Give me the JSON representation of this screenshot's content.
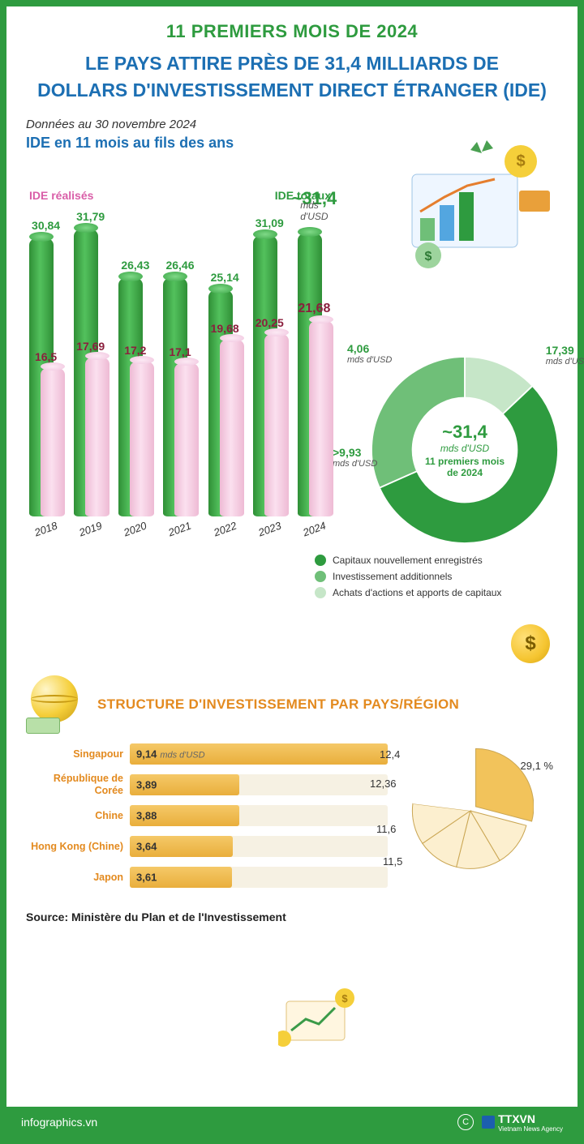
{
  "header": {
    "subtitle": "11 PREMIERS MOIS DE 2024",
    "title_l1": "LE PAYS ATTIRE PRÈS DE 31,4 MILLIARDS DE",
    "title_l2": "DOLLARS D'INVESTISSEMENT DIRECT ÉTRANGER  (IDE)",
    "date_note": "Données au 30 novembre 2024",
    "chart_title": "IDE en 11 mois au fils des ans"
  },
  "colors": {
    "border": "#2e9b3f",
    "blue": "#1c6fb3",
    "green": "#2e9b3f",
    "green_mid": "#6fbf78",
    "green_light": "#c6e6c8",
    "pink_label": "#d95ea8",
    "pink_dark": "#8b1f3d",
    "orange": "#e38a1f",
    "bar_gold": "#eeb94a",
    "bar_track": "#f6f1e3",
    "pie_gold": "#f2c35b",
    "pie_cream": "#fcefcf",
    "white": "#ffffff"
  },
  "bar_chart": {
    "type": "grouped-cylinder-bar",
    "label_realises": "IDE réalisés",
    "label_totaux": "IDE totaux",
    "unit": "mds d'USD",
    "years": [
      "2018",
      "2019",
      "2020",
      "2021",
      "2022",
      "2023",
      "2024"
    ],
    "totaux": [
      30.84,
      31.79,
      26.43,
      26.46,
      25.14,
      31.09,
      31.4
    ],
    "totaux_labels": [
      "30,84",
      "31,79",
      "26,43",
      "26,46",
      "25,14",
      "31,09",
      "~31,4"
    ],
    "realises": [
      16.5,
      17.69,
      17.2,
      17.1,
      19.68,
      20.25,
      21.68
    ],
    "realises_labels": [
      "16,5",
      "17,69",
      "17,2",
      "17,1",
      "19,68",
      "20,25",
      "21,68"
    ],
    "y_max": 34,
    "highlight_index": 6,
    "bar_color_totaux": "#3ba647",
    "bar_color_realises": "#f1c5df"
  },
  "donut": {
    "type": "donut",
    "center_value": "~31,4",
    "center_unit": "mds d'USD",
    "center_sub": "11 premiers mois de 2024",
    "slices": [
      {
        "label": "Capitaux nouvellement enregistrés",
        "value": 17.39,
        "value_str": "17,39",
        "color": "#2e9b3f"
      },
      {
        "label": "Investissement additionnels",
        "value": 9.93,
        "value_str": ">9,93",
        "color": "#6fbf78"
      },
      {
        "label": "Achats d'actions et apports de capitaux",
        "value": 4.06,
        "value_str": "4,06",
        "color": "#c6e6c8"
      }
    ],
    "unit": "mds d'USD"
  },
  "structure": {
    "title": "STRUCTURE D'INVESTISSEMENT PAR PAYS/RÉGION",
    "unit": "mds d'USD",
    "max_bar": 9.14,
    "rows": [
      {
        "label": "Singapour",
        "value": 9.14,
        "value_str": "9,14",
        "show_unit": true
      },
      {
        "label": "République de Corée",
        "value": 3.89,
        "value_str": "3,89",
        "show_unit": false
      },
      {
        "label": "Chine",
        "value": 3.88,
        "value_str": "3,88",
        "show_unit": false
      },
      {
        "label": "Hong Kong (Chine)",
        "value": 3.64,
        "value_str": "3,64",
        "show_unit": false
      },
      {
        "label": "Japon",
        "value": 3.61,
        "value_str": "3,61",
        "show_unit": false
      }
    ],
    "pie": {
      "type": "pie",
      "highlight_value": 29.1,
      "highlight_label": "29,1 %",
      "other_labels": [
        "12,4",
        "12,36",
        "11,6",
        "11,5"
      ],
      "slices_pct": [
        29.1,
        12.4,
        12.36,
        11.6,
        11.5,
        23.04
      ],
      "slice_colors": [
        "#f2c35b",
        "#fcefcf",
        "#fcefcf",
        "#fcefcf",
        "#fcefcf",
        "#ffffff"
      ]
    }
  },
  "source": "Source: Ministère du Plan et de l'Investissement",
  "footer": {
    "site": "infographics.vn",
    "agency": "TTXVN",
    "agency_sub": "Vietnam News Agency",
    "cc": "C"
  }
}
